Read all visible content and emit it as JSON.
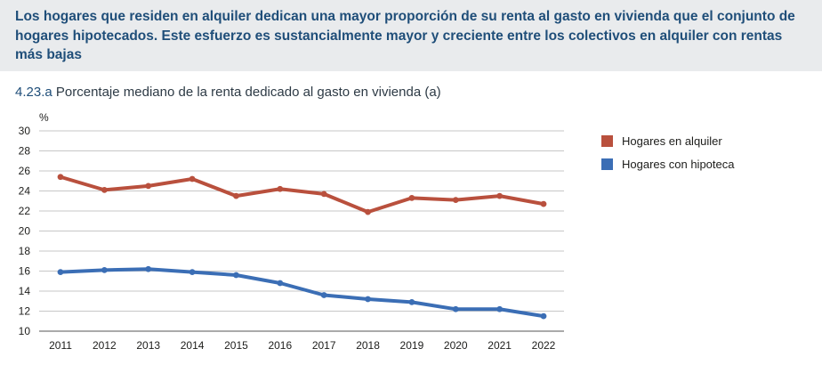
{
  "header": {
    "headline": "Los hogares que residen en alquiler dedican una mayor proporción de su renta al gasto en vivienda que el conjunto de hogares hipotecados. Este esfuerzo es sustancialmente mayor y creciente entre los colectivos en alquiler con rentas más bajas"
  },
  "chart_data": {
    "type": "line",
    "number": "4.23.a",
    "title": "Porcentaje mediano de la renta dedicado al gasto en vivienda (a)",
    "ylabel": "%",
    "xlabel": "",
    "x": [
      "2011",
      "2012",
      "2013",
      "2014",
      "2015",
      "2016",
      "2017",
      "2018",
      "2019",
      "2020",
      "2021",
      "2022"
    ],
    "ylim": [
      10,
      30
    ],
    "yticks": [
      10,
      12,
      14,
      16,
      18,
      20,
      22,
      24,
      26,
      28,
      30
    ],
    "grid": true,
    "legend_position": "right",
    "series": [
      {
        "name": "Hogares en alquiler",
        "color": "#b9503d",
        "values": [
          25.4,
          24.1,
          24.5,
          25.2,
          23.5,
          24.2,
          23.7,
          21.9,
          23.3,
          23.1,
          23.5,
          22.7
        ]
      },
      {
        "name": "Hogares con hipoteca",
        "color": "#3b6eb5",
        "values": [
          15.9,
          16.1,
          16.2,
          15.9,
          15.6,
          14.8,
          13.6,
          13.2,
          12.9,
          12.2,
          12.2,
          11.5
        ]
      }
    ]
  }
}
